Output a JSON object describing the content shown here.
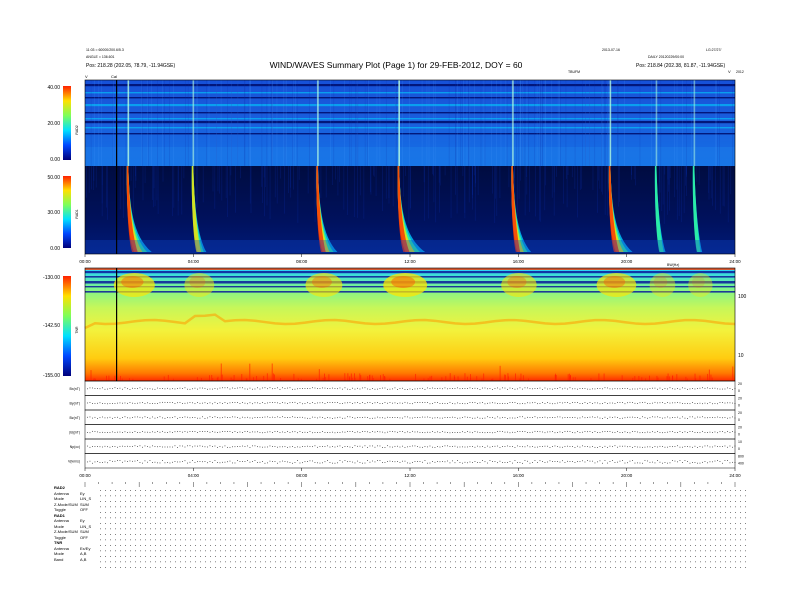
{
  "header": {
    "title": "WIND/WAVES Summary Plot (Page 1) for 29-FEB-2012, DOY = 60",
    "left_line1": "11:03 = 60000/200.6/5.3",
    "left_line2": "ANGLE = 136.601",
    "left_pos": "Pos:  218.28 (202.05, 78.79, -11.94GSE)",
    "mid_left": "RAD",
    "mid_right": "TBUFM",
    "right_line1": "LG:27/27/",
    "right_line2": "DAILY 20120229/00:00",
    "right_pos": "Pos:  218.84 (202.38, 81.87, -11.94GSE)",
    "right_code": "2013-07-16",
    "marker_v": "V",
    "marker_cal": "Cal",
    "marker_v2": "V",
    "marker_2012": "2012"
  },
  "panels": {
    "rad2": {
      "label": "RAD2",
      "ticks": [
        "40.00",
        "20.00",
        "0.00"
      ]
    },
    "rad1": {
      "label": "RAD1",
      "ticks": [
        "50.00",
        "30.00",
        "0.00"
      ]
    },
    "tnr": {
      "label": "TNR",
      "ticks": [
        "-130.00",
        "-142.50",
        "-155.00"
      ],
      "right_ticks": [
        "100",
        "10"
      ]
    }
  },
  "time_ticks_upper": [
    "00:00",
    "04:00",
    "08:00",
    "12:00",
    "16:00",
    "20:00",
    "24:00"
  ],
  "time_ticks_lower": [
    "00:00",
    "04:00",
    "08:00",
    "12:00",
    "16:00",
    "20:00",
    "24:00"
  ],
  "tnr_right_header": "BW(Hz)",
  "line_panels": [
    {
      "label": "Bx(nT)",
      "right_ticks": [
        "20",
        "0"
      ]
    },
    {
      "label": "By(nT)",
      "right_ticks": [
        "20",
        "0"
      ]
    },
    {
      "label": "Bz(nT)",
      "right_ticks": [
        "20",
        "0"
      ]
    },
    {
      "label": "|B|(nT)",
      "right_ticks": [
        "20",
        "0"
      ]
    },
    {
      "label": "Np(cc)",
      "right_ticks": [
        "10",
        "0"
      ]
    },
    {
      "label": "V(km/s)",
      "right_ticks": [
        "800",
        "400"
      ]
    }
  ],
  "mode_table": [
    {
      "name": "RAD2",
      "rows": [
        [
          "Antenna",
          "Ey"
        ],
        [
          "Mode",
          "LIN_S"
        ],
        [
          "Z-Mode/SUM",
          "SUM"
        ],
        [
          "Toggle",
          "OFF"
        ]
      ]
    },
    {
      "name": "RAD1",
      "rows": [
        [
          "Antenna",
          "Ey"
        ],
        [
          "Mode",
          "LIN_S"
        ],
        [
          "Z-Mode/SUM",
          "SUM"
        ],
        [
          "Toggle",
          "OFF"
        ]
      ]
    },
    {
      "name": "TNR",
      "rows": [
        [
          "Antenna",
          "Ex/Ey"
        ],
        [
          "Mode",
          "A,B"
        ],
        [
          "Band",
          "A,B"
        ]
      ]
    }
  ],
  "colors": {
    "bg": "#0b1fa0",
    "mid": "#1f6bd6",
    "hot": "#ffe000",
    "burst": "#ff2a00"
  },
  "chart_data": {
    "type": "heatmap",
    "title": "WIND/WAVES Summary Plot (Page 1) for 29-FEB-2012, DOY = 60",
    "x_range_hours": [
      0,
      24
    ],
    "burst_times_hours": [
      1.6,
      4.0,
      8.6,
      11.6,
      15.8,
      19.4,
      21.1,
      22.5
    ],
    "burst_strengths": [
      0.9,
      0.5,
      0.75,
      1.0,
      0.7,
      0.85,
      0.35,
      0.3
    ],
    "rad2_range": [
      0,
      40
    ],
    "rad1_range": [
      0,
      50
    ],
    "tnr_range": [
      -155,
      -130
    ],
    "magnetic_field_axes": [
      "Bx",
      "By",
      "Bz",
      "|B|"
    ]
  }
}
